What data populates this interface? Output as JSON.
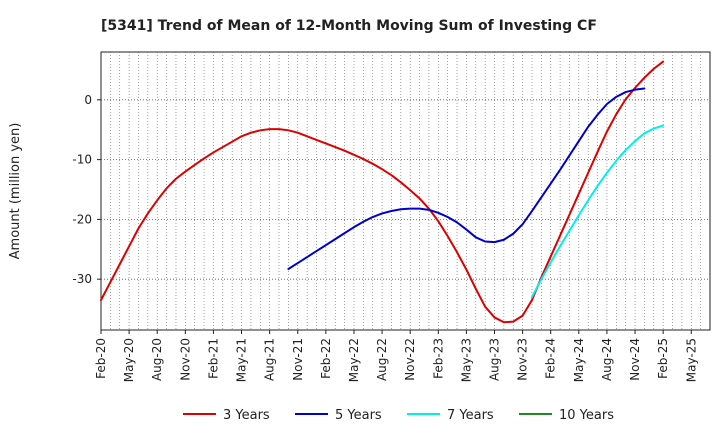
{
  "chart_data": {
    "type": "line",
    "title": "[5341]  Trend of Mean of 12-Month Moving Sum of Investing CF",
    "xlabel": "",
    "ylabel": "Amount (million yen)",
    "ylim": [
      -38.5,
      8
    ],
    "yticks": [
      0,
      -10,
      -20,
      -30
    ],
    "grid": true,
    "legend_position": "bottom",
    "x_tick_labels": [
      "Feb-20",
      "May-20",
      "Aug-20",
      "Nov-20",
      "Feb-21",
      "May-21",
      "Aug-21",
      "Nov-21",
      "Feb-22",
      "May-22",
      "Aug-22",
      "Nov-22",
      "Feb-23",
      "May-23",
      "Aug-23",
      "Nov-23",
      "Feb-24",
      "May-24",
      "Aug-24",
      "Nov-24",
      "Feb-25",
      "May-25"
    ],
    "x_months": 65,
    "series": [
      {
        "name": "3 Years",
        "color": "#dd0000",
        "start_index": 0,
        "values": [
          -33.5,
          -30.5,
          -27.5,
          -24.5,
          -21.5,
          -19.0,
          -16.8,
          -14.8,
          -13.2,
          -12.0,
          -10.9,
          -9.8,
          -8.8,
          -7.9,
          -7.0,
          -6.1,
          -5.5,
          -5.1,
          -4.9,
          -4.9,
          -5.1,
          -5.5,
          -6.1,
          -6.7,
          -7.3,
          -7.9,
          -8.5,
          -9.2,
          -9.9,
          -10.7,
          -11.6,
          -12.6,
          -13.8,
          -15.1,
          -16.5,
          -18.2,
          -20.3,
          -22.8,
          -25.5,
          -28.4,
          -31.6,
          -34.6,
          -36.4,
          -37.2,
          -37.1,
          -36.1,
          -33.5,
          -29.7,
          -26.2,
          -22.7,
          -19.2,
          -15.7,
          -12.2,
          -8.7,
          -5.3,
          -2.4,
          0.1,
          2.0,
          3.7,
          5.2,
          6.4
        ]
      },
      {
        "name": "5 Years",
        "color": "#0000cc",
        "start_index": 20,
        "values": [
          -28.3,
          -27.3,
          -26.3,
          -25.3,
          -24.3,
          -23.3,
          -22.3,
          -21.3,
          -20.4,
          -19.6,
          -19.0,
          -18.6,
          -18.3,
          -18.2,
          -18.2,
          -18.4,
          -18.9,
          -19.6,
          -20.5,
          -21.7,
          -23.0,
          -23.7,
          -23.8,
          -23.4,
          -22.4,
          -20.8,
          -18.6,
          -16.3,
          -14.0,
          -11.7,
          -9.3,
          -6.9,
          -4.5,
          -2.5,
          -0.7,
          0.5,
          1.3,
          1.7,
          1.9
        ]
      },
      {
        "name": "7 Years",
        "color": "#00eeee",
        "start_index": 46,
        "values": [
          -33.0,
          -30.0,
          -27.2,
          -24.5,
          -21.9,
          -19.3,
          -16.8,
          -14.4,
          -12.2,
          -10.2,
          -8.4,
          -6.9,
          -5.6,
          -4.8,
          -4.3
        ]
      },
      {
        "name": "10 Years",
        "color": "#228822",
        "start_index": 0,
        "values": []
      }
    ]
  }
}
